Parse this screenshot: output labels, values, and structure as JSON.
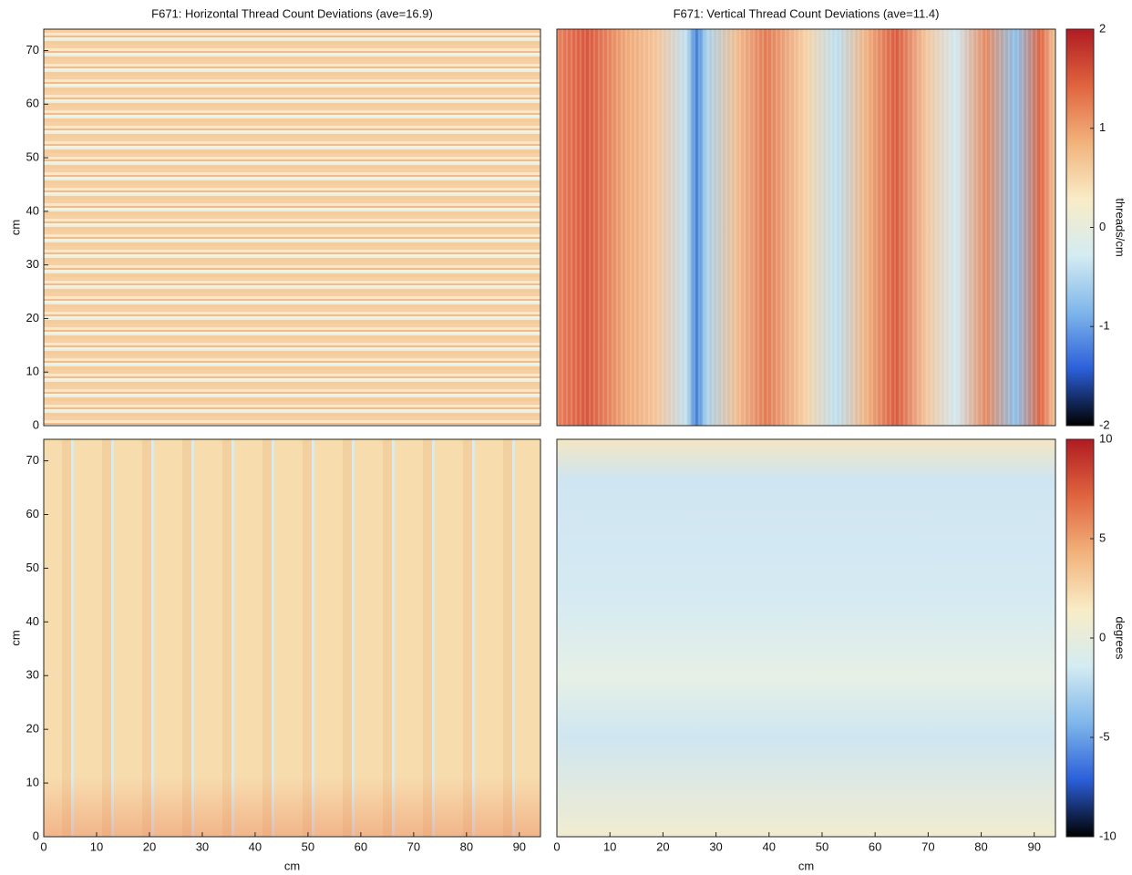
{
  "chart_data": [
    {
      "type": "heatmap",
      "title": "F671: Horizontal Thread Count Deviations (ave=16.9)",
      "ylabel": "cm",
      "xlim": [
        0,
        94
      ],
      "ylim": [
        0,
        74
      ],
      "yticks": [
        0,
        10,
        20,
        30,
        40,
        50,
        60,
        70
      ]
    },
    {
      "type": "heatmap",
      "title": "F671: Vertical Thread Count Deviations (ave=11.4)",
      "xlim": [
        0,
        94
      ],
      "ylim": [
        0,
        74
      ],
      "colorbar": {
        "label": "threads/cm",
        "lim": [
          -2,
          2
        ],
        "ticks": [
          -2,
          -1,
          0,
          1,
          2
        ],
        "colormap": [
          "#000000",
          "#2b5fd9",
          "#7fb6ea",
          "#d4ecf2",
          "#f9ecc6",
          "#f2b27c",
          "#e0643f",
          "#b01c22"
        ]
      }
    },
    {
      "type": "heatmap",
      "xlabel": "cm",
      "ylabel": "cm",
      "xlim": [
        0,
        94
      ],
      "ylim": [
        0,
        74
      ],
      "xticks": [
        0,
        10,
        20,
        30,
        40,
        50,
        60,
        70,
        80,
        90
      ],
      "yticks": [
        0,
        10,
        20,
        30,
        40,
        50,
        60,
        70
      ]
    },
    {
      "type": "heatmap",
      "xlabel": "cm",
      "xlim": [
        0,
        94
      ],
      "ylim": [
        0,
        74
      ],
      "xticks": [
        0,
        10,
        20,
        30,
        40,
        50,
        60,
        70,
        80,
        90
      ],
      "colorbar": {
        "label": "degrees",
        "lim": [
          -10,
          10
        ],
        "ticks": [
          -10,
          -5,
          0,
          5,
          10
        ],
        "colormap": [
          "#000000",
          "#2b5fd9",
          "#7fb6ea",
          "#d4ecf2",
          "#f9ecc6",
          "#f2b27c",
          "#e0643f",
          "#b01c22"
        ]
      }
    }
  ]
}
